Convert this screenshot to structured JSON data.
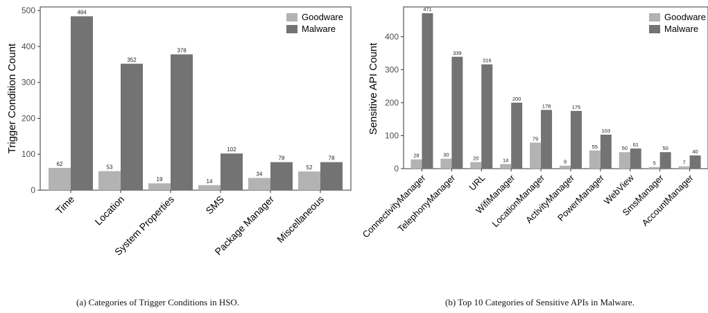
{
  "chart_data": [
    {
      "type": "bar",
      "title": "",
      "xlabel": "",
      "ylabel": "Trigger Condition Count",
      "ylim": [
        0,
        510
      ],
      "yticks": [
        0,
        100,
        200,
        300,
        400,
        500
      ],
      "grid": false,
      "legend": "top-right",
      "categories": [
        "Time",
        "Location",
        "System Properties",
        "SMS",
        "Package Manager",
        "Miscellaneous"
      ],
      "series": [
        {
          "name": "Goodware",
          "color": "#b3b3b3",
          "values": [
            62,
            53,
            19,
            14,
            34,
            52
          ]
        },
        {
          "name": "Malware",
          "color": "#737373",
          "values": [
            484,
            352,
            378,
            102,
            78,
            78
          ]
        }
      ]
    },
    {
      "type": "bar",
      "title": "",
      "xlabel": "",
      "ylabel": "Sensitive API Count",
      "ylim": [
        0,
        490
      ],
      "yticks": [
        0,
        100,
        200,
        300,
        400
      ],
      "grid": false,
      "legend": "top-right",
      "categories": [
        "ConnectivityManager",
        "TelephonyManager",
        "URL",
        "WifiManager",
        "LocationManager",
        "ActivityManager",
        "PowerManager",
        "WebView",
        "SmsManager",
        "AccountManager"
      ],
      "series": [
        {
          "name": "Goodware",
          "color": "#b3b3b3",
          "values": [
            28,
            30,
            20,
            14,
            79,
            9,
            55,
            50,
            5,
            7
          ]
        },
        {
          "name": "Malware",
          "color": "#737373",
          "values": [
            471,
            339,
            316,
            200,
            178,
            175,
            103,
            61,
            50,
            40
          ]
        }
      ]
    }
  ],
  "captions": [
    "(a)  Categories of Trigger Conditions in HSO.",
    "(b)  Top 10 Categories of Sensitive APIs in Malware."
  ]
}
